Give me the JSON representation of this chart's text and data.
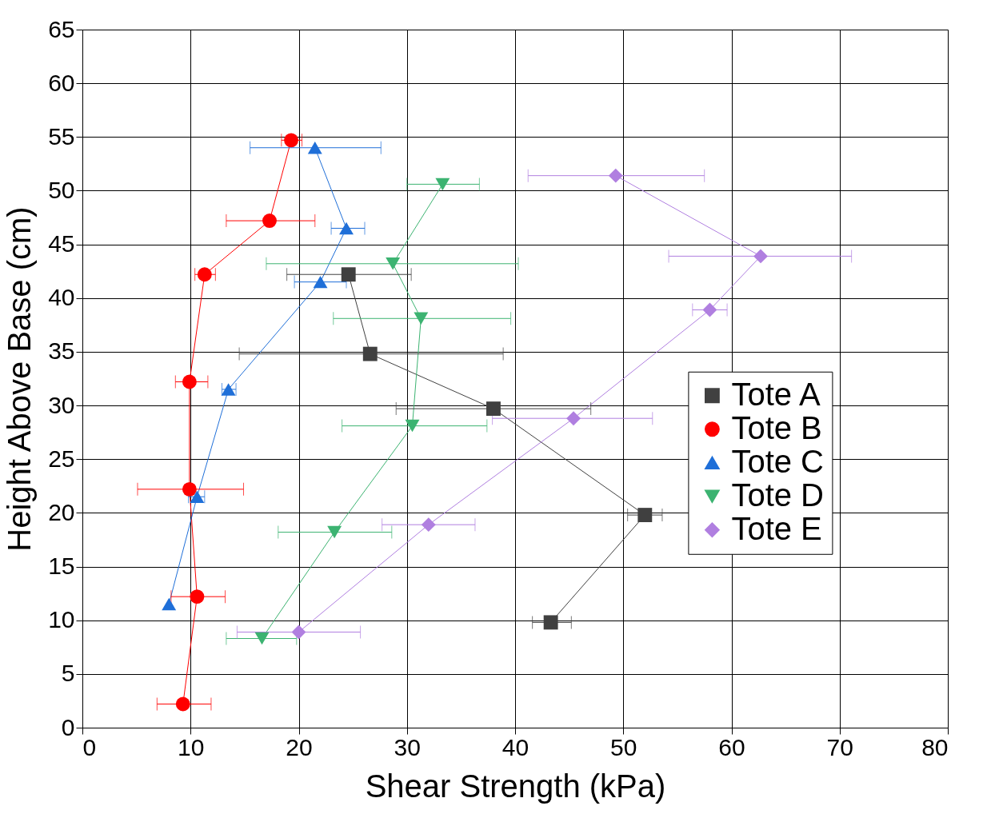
{
  "chart_data": {
    "type": "line",
    "xlabel": "Shear Strength (kPa)",
    "ylabel": "Height Above Base (cm)",
    "xlim": [
      0,
      80
    ],
    "xticks": [
      0,
      10,
      20,
      30,
      40,
      50,
      60,
      70,
      80
    ],
    "ylim": [
      0,
      65
    ],
    "yticks": [
      0,
      5,
      10,
      15,
      20,
      25,
      30,
      35,
      40,
      45,
      50,
      55,
      60,
      65
    ],
    "grid": true,
    "legend": "right",
    "line_style": "solid",
    "series": [
      {
        "name": "Tote A",
        "color": "#404040",
        "marker": "square",
        "x": [
          24.6,
          26.6,
          38.0,
          52.0,
          43.3
        ],
        "values": [
          42.2,
          34.8,
          29.7,
          19.8,
          9.8
        ],
        "xerrors": [
          [
            18.9,
            30.4
          ],
          [
            14.5,
            38.9
          ],
          [
            29.0,
            47.0
          ],
          [
            50.4,
            53.6
          ],
          [
            41.6,
            45.2
          ]
        ]
      },
      {
        "name": "Tote B",
        "color": "#ff0000",
        "marker": "circle",
        "x": [
          19.3,
          17.3,
          11.3,
          9.9,
          9.9,
          10.6,
          9.3
        ],
        "values": [
          54.7,
          47.2,
          42.2,
          32.2,
          22.2,
          12.2,
          2.2
        ],
        "xerrors": [
          [
            18.4,
            20.3
          ],
          [
            13.3,
            21.5
          ],
          [
            10.4,
            12.3
          ],
          [
            8.6,
            11.6
          ],
          [
            5.1,
            14.9
          ],
          [
            8.2,
            13.2
          ],
          [
            6.9,
            11.9
          ]
        ]
      },
      {
        "name": "Tote C",
        "color": "#1f6fd8",
        "marker": "triangle",
        "x": [
          21.5,
          24.4,
          22.0,
          13.5,
          10.6,
          8.0
        ],
        "values": [
          54.0,
          46.5,
          41.5,
          31.5,
          21.5,
          11.5
        ],
        "xerrors": [
          [
            15.5,
            27.6
          ],
          [
            23.0,
            26.1
          ],
          [
            19.6,
            24.4
          ],
          [
            12.9,
            14.2
          ],
          [
            9.8,
            11.3
          ],
          null
        ]
      },
      {
        "name": "Tote D",
        "color": "#3cb371",
        "marker": "triangle-down",
        "x": [
          33.3,
          28.7,
          31.3,
          30.5,
          23.3,
          16.6
        ],
        "values": [
          50.6,
          43.2,
          38.1,
          28.1,
          18.2,
          8.3
        ],
        "xerrors": [
          [
            30.0,
            36.7
          ],
          [
            17.0,
            40.3
          ],
          [
            23.2,
            39.6
          ],
          [
            24.0,
            37.4
          ],
          [
            18.1,
            28.6
          ],
          [
            13.3,
            19.8
          ]
        ]
      },
      {
        "name": "Tote E",
        "color": "#b07fe0",
        "marker": "diamond",
        "x": [
          49.3,
          62.7,
          58.0,
          45.4,
          32.0,
          20.0
        ],
        "values": [
          51.4,
          43.9,
          38.9,
          28.8,
          18.9,
          8.9
        ],
        "xerrors": [
          [
            41.2,
            57.5
          ],
          [
            54.2,
            71.1
          ],
          [
            56.4,
            59.6
          ],
          [
            37.9,
            52.7
          ],
          [
            27.7,
            36.3
          ],
          [
            14.3,
            25.7
          ]
        ]
      }
    ]
  }
}
